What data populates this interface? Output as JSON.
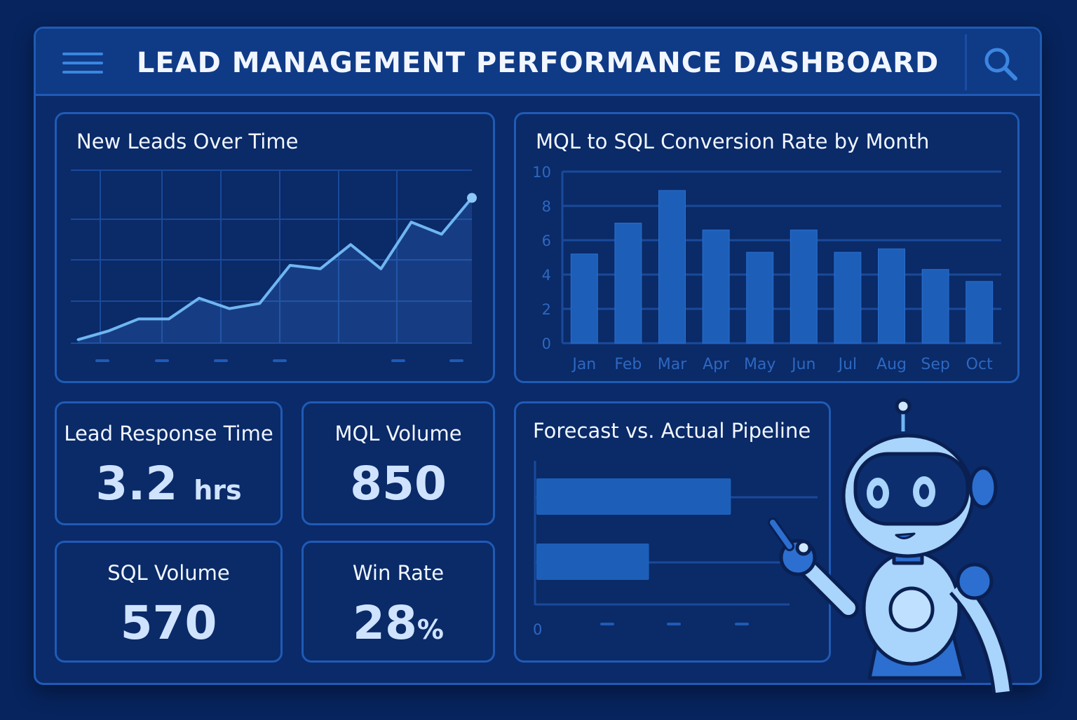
{
  "header": {
    "title": "LEAD MANAGEMENT PERFORMANCE DASHBOARD",
    "menu_icon": "hamburger-icon",
    "search_icon": "search-icon"
  },
  "colors": {
    "background": "#07245e",
    "panel": "#0a2a68",
    "border": "#1f5bb5",
    "bar": "#1d5fb8",
    "line": "#6fb6f2"
  },
  "chart_data": [
    {
      "type": "line",
      "title": "New Leads Over Time",
      "grid": true,
      "series": [
        {
          "values": [
            2,
            7,
            14,
            14,
            26,
            20,
            23,
            45,
            43,
            57,
            43,
            70,
            63,
            84
          ]
        }
      ]
    },
    {
      "type": "bar",
      "title": "MQL to SQL Conversion Rate by Month",
      "categories": [
        "Jan",
        "Feb",
        "Mar",
        "Apr",
        "May",
        "Jun",
        "Jul",
        "Aug",
        "Sep",
        "Oct"
      ],
      "values": [
        5.2,
        7.0,
        8.9,
        6.6,
        5.3,
        6.6,
        5.3,
        5.5,
        4.3,
        3.6
      ],
      "ylim": [
        0,
        10
      ],
      "yticks": [
        "0",
        "2",
        "4",
        "6",
        "8",
        "10"
      ],
      "grid": true
    },
    {
      "type": "bar",
      "orientation": "horizontal",
      "title": "Forecast vs. Actual Pipeline",
      "values_percent_of_axis": [
        76,
        44
      ],
      "xticks": [
        "0"
      ]
    }
  ],
  "kpis": [
    {
      "label": "Lead Response Time",
      "value": "3.2",
      "unit": "hrs"
    },
    {
      "label": "MQL Volume",
      "value": "850",
      "unit": ""
    },
    {
      "label": "SQL Volume",
      "value": "570",
      "unit": ""
    },
    {
      "label": "Win Rate",
      "value": "28",
      "unit": "%"
    }
  ]
}
